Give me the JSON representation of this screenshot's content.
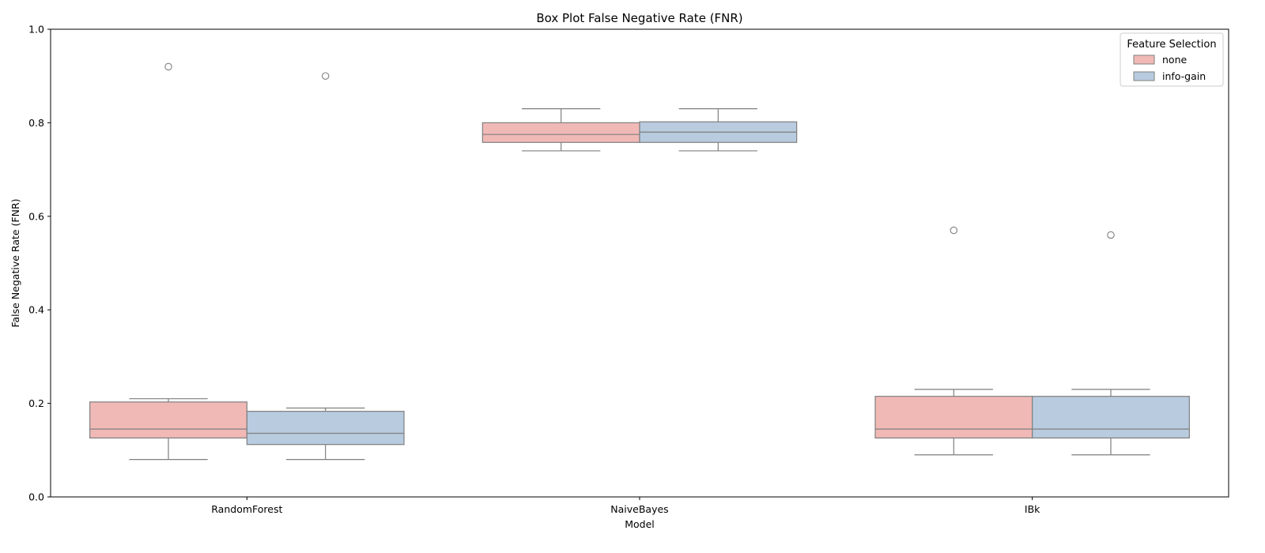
{
  "chart_data": {
    "type": "box",
    "title": "Box Plot False Negative Rate (FNR)",
    "xlabel": "Model",
    "ylabel": "False Negative Rate (FNR)",
    "ylim": [
      0.0,
      1.0
    ],
    "yticks": [
      "0.0",
      "0.2",
      "0.4",
      "0.6",
      "0.8",
      "1.0"
    ],
    "categories": [
      "RandomForest",
      "NaiveBayes",
      "IBk"
    ],
    "grid": false,
    "legend": {
      "title": "Feature Selection",
      "placement": "top-right"
    },
    "series": [
      {
        "name": "none",
        "color": "#f1b9b6",
        "boxes": [
          {
            "category": "RandomForest",
            "whisker_low": 0.08,
            "q1": 0.126,
            "median": 0.145,
            "q3": 0.203,
            "whisker_high": 0.21,
            "outliers": [
              0.92
            ]
          },
          {
            "category": "NaiveBayes",
            "whisker_low": 0.74,
            "q1": 0.758,
            "median": 0.775,
            "q3": 0.8,
            "whisker_high": 0.83,
            "outliers": []
          },
          {
            "category": "IBk",
            "whisker_low": 0.09,
            "q1": 0.126,
            "median": 0.145,
            "q3": 0.215,
            "whisker_high": 0.23,
            "outliers": [
              0.57
            ]
          }
        ]
      },
      {
        "name": "info-gain",
        "color": "#b8cbdf",
        "boxes": [
          {
            "category": "RandomForest",
            "whisker_low": 0.08,
            "q1": 0.112,
            "median": 0.136,
            "q3": 0.183,
            "whisker_high": 0.19,
            "outliers": [
              0.9
            ]
          },
          {
            "category": "NaiveBayes",
            "whisker_low": 0.74,
            "q1": 0.758,
            "median": 0.78,
            "q3": 0.802,
            "whisker_high": 0.83,
            "outliers": []
          },
          {
            "category": "IBk",
            "whisker_low": 0.09,
            "q1": 0.126,
            "median": 0.145,
            "q3": 0.215,
            "whisker_high": 0.23,
            "outliers": [
              0.56
            ]
          }
        ]
      }
    ],
    "edge_color": "#7f7f7f"
  }
}
